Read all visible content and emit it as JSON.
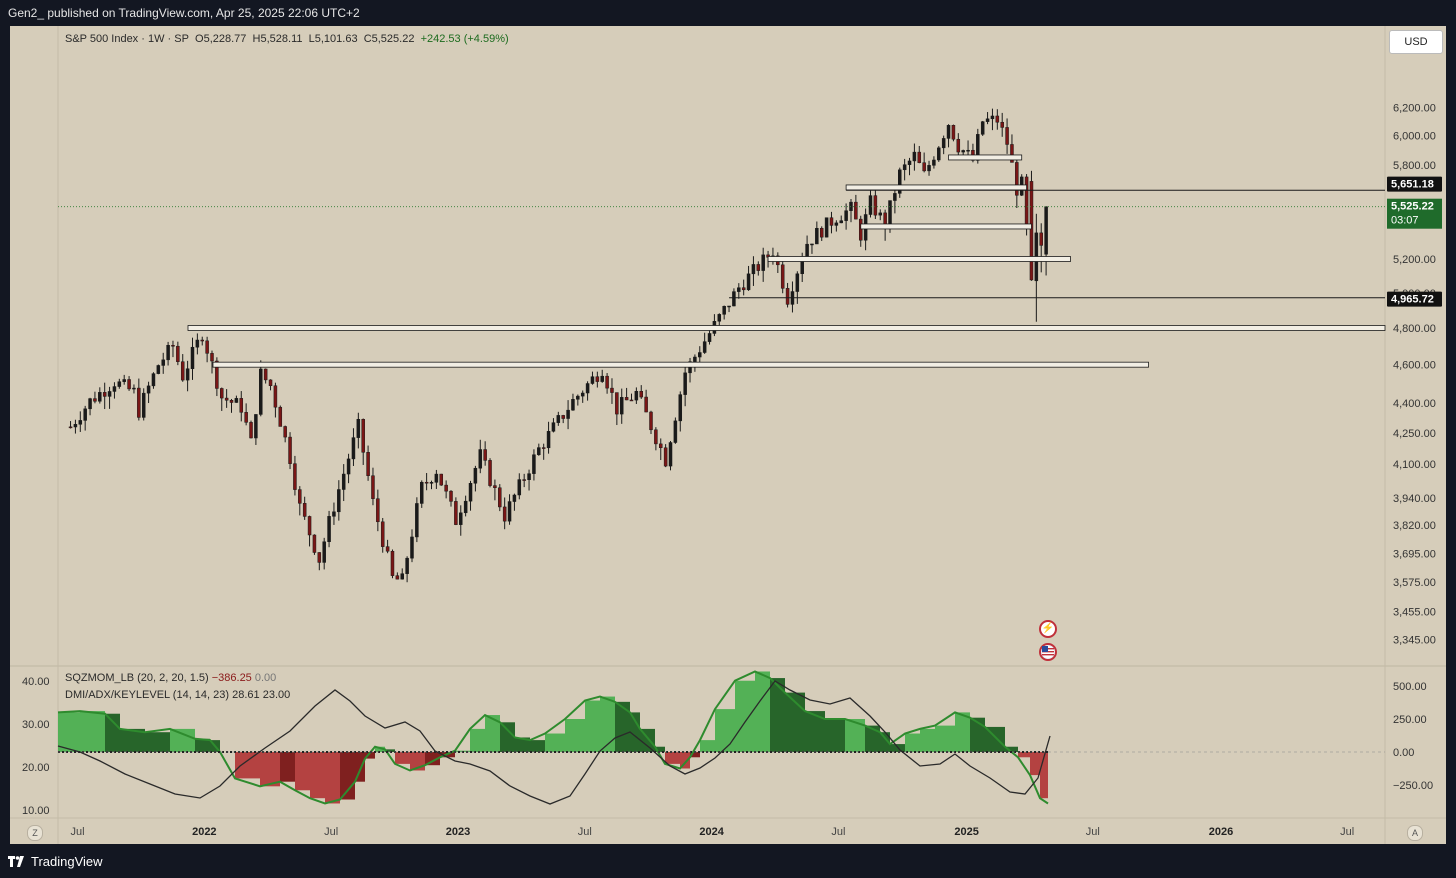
{
  "header": {
    "published": "Gen2_ published on TradingView.com, Apr 25, 2025 22:06 UTC+2"
  },
  "footer": {
    "brand": "TradingView"
  },
  "legend": {
    "symbol": "S&P 500 Index · 1W · SP",
    "open": "O5,228.77",
    "high": "H5,528.11",
    "low": "L5,101.63",
    "close": "C5,525.22",
    "change": "+242.53 (+4.59%)"
  },
  "currency_button": "USD",
  "corner_left": "Z",
  "corner_right": "A",
  "indicators": {
    "sqz": {
      "name": "SQZMOM_LB (20, 2, 20, 1.5)",
      "value": "−386.25",
      "value2": "0.00"
    },
    "dmi": {
      "name": "DMI/ADX/KEYLEVEL (14, 14, 23)",
      "value": "28.61",
      "value2": "23.00"
    }
  },
  "price_labels": {
    "level_high": "5,651.18",
    "current": "5,525.22",
    "countdown": "03:07",
    "level_low": "4,965.72"
  },
  "colors": {
    "up": "#1a1a1a",
    "down": "#7a1616",
    "mom_pos_dark": "#1e5f22",
    "mom_pos_light": "#4caf50",
    "mom_neg_dark": "#7a1616",
    "mom_neg_light": "#b23a3a",
    "current_label": "#1f6b2b"
  },
  "icons": [
    "lightning-event-icon",
    "us-flag-event-icon",
    "tradingview-logo-icon"
  ],
  "chart_data": {
    "type": "candlestick",
    "title": "",
    "ylabel": "",
    "y_scale": "log",
    "ylim": [
      3300,
      6400
    ],
    "y_ticks": [
      "6,200.00",
      "6,000.00",
      "5,800.00",
      "5,651.18",
      "5,525.22",
      "5,200.00",
      "5,000.00",
      "4,965.72",
      "4,800.00",
      "4,600.00",
      "4,400.00",
      "4,250.00",
      "4,100.00",
      "3,940.00",
      "3,820.00",
      "3,695.00",
      "3,575.00",
      "3,455.00",
      "3,345.00"
    ],
    "x_ticks": [
      "Jul",
      "2022",
      "Jul",
      "2023",
      "Jul",
      "2024",
      "Jul",
      "2025",
      "Jul",
      "2026",
      "Jul"
    ],
    "weekly_close_path": [
      [
        "2021-06-25",
        4280
      ],
      [
        "2021-07-23",
        4410
      ],
      [
        "2021-08-27",
        4510
      ],
      [
        "2021-09-24",
        4455
      ],
      [
        "2021-10-01",
        4360
      ],
      [
        "2021-10-29",
        4600
      ],
      [
        "2021-11-19",
        4700
      ],
      [
        "2021-12-03",
        4540
      ],
      [
        "2021-12-31",
        4770
      ],
      [
        "2022-01-28",
        4430
      ],
      [
        "2022-02-25",
        4380
      ],
      [
        "2022-03-11",
        4200
      ],
      [
        "2022-03-25",
        4550
      ],
      [
        "2022-04-08",
        4490
      ],
      [
        "2022-05-06",
        4130
      ],
      [
        "2022-05-20",
        3900
      ],
      [
        "2022-06-17",
        3670
      ],
      [
        "2022-07-01",
        3830
      ],
      [
        "2022-07-29",
        4130
      ],
      [
        "2022-08-12",
        4280
      ],
      [
        "2022-09-02",
        3920
      ],
      [
        "2022-09-30",
        3590
      ],
      [
        "2022-10-14",
        3580
      ],
      [
        "2022-11-11",
        3990
      ],
      [
        "2022-12-02",
        4070
      ],
      [
        "2022-12-30",
        3840
      ],
      [
        "2023-02-03",
        4140
      ],
      [
        "2023-03-10",
        3860
      ],
      [
        "2023-04-28",
        4170
      ],
      [
        "2023-06-16",
        4410
      ],
      [
        "2023-07-28",
        4580
      ],
      [
        "2023-08-18",
        4370
      ],
      [
        "2023-09-15",
        4450
      ],
      [
        "2023-10-27",
        4120
      ],
      [
        "2023-11-24",
        4560
      ],
      [
        "2023-12-29",
        4770
      ],
      [
        "2024-02-09",
        5030
      ],
      [
        "2024-03-29",
        5250
      ],
      [
        "2024-04-19",
        4970
      ],
      [
        "2024-05-17",
        5300
      ],
      [
        "2024-06-28",
        5460
      ],
      [
        "2024-07-19",
        5510
      ],
      [
        "2024-08-02",
        5350
      ],
      [
        "2024-08-16",
        5550
      ],
      [
        "2024-09-06",
        5410
      ],
      [
        "2024-09-27",
        5740
      ],
      [
        "2024-10-18",
        5860
      ],
      [
        "2024-11-01",
        5730
      ],
      [
        "2024-11-15",
        5870
      ],
      [
        "2024-12-06",
        6090
      ],
      [
        "2024-12-20",
        5930
      ],
      [
        "2025-01-10",
        5830
      ],
      [
        "2025-01-24",
        6100
      ],
      [
        "2025-02-14",
        6110
      ],
      [
        "2025-02-28",
        5950
      ],
      [
        "2025-03-14",
        5640
      ],
      [
        "2025-03-21",
        5670
      ],
      [
        "2025-04-04",
        5070
      ],
      [
        "2025-04-11",
        5360
      ],
      [
        "2025-04-18",
        5280
      ],
      [
        "2025-04-25",
        5525.22
      ]
    ],
    "key_levels": [
      5850,
      5651.18,
      5650,
      5400,
      5200,
      4965.72,
      4800,
      4600
    ],
    "indicator_axes": {
      "momentum_ticks": [
        "500.00",
        "250.00",
        "0.00",
        "−250.00"
      ],
      "adx_ticks": [
        "40.00",
        "30.00",
        "20.00",
        "10.00"
      ]
    }
  }
}
